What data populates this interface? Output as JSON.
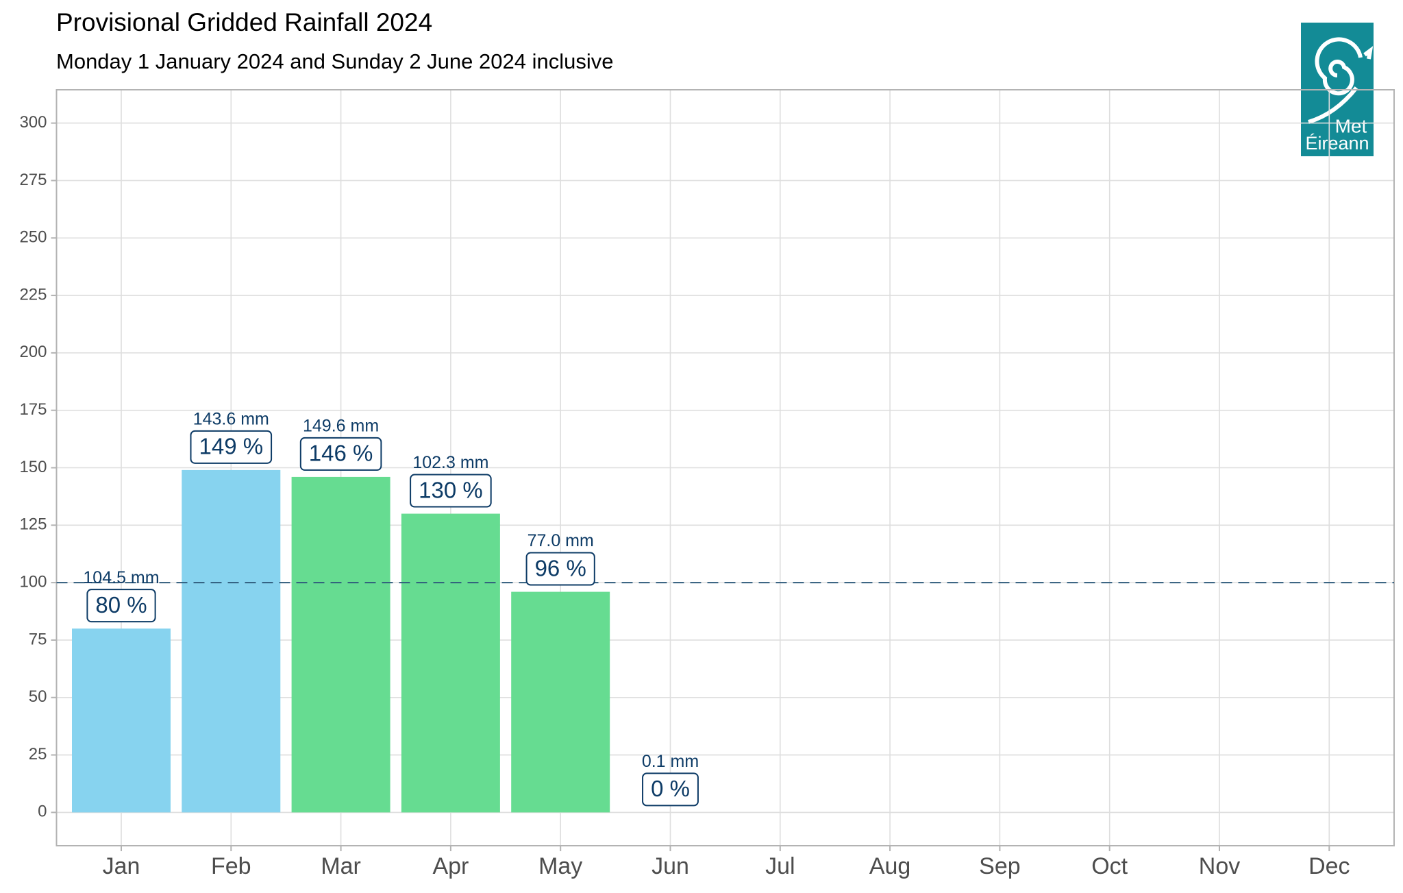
{
  "chart_data": {
    "type": "bar",
    "title": "Provisional Gridded Rainfall 2024",
    "subtitle": "Monday 1 January 2024 and Sunday 2 June 2024 inclusive",
    "categories": [
      "Jan",
      "Feb",
      "Mar",
      "Apr",
      "May",
      "Jun",
      "Jul",
      "Aug",
      "Sep",
      "Oct",
      "Nov",
      "Dec"
    ],
    "values": [
      80,
      149,
      146,
      130,
      96,
      0,
      null,
      null,
      null,
      null,
      null,
      null
    ],
    "value_labels": [
      "80 %",
      "149 %",
      "146 %",
      "130 %",
      "96 %",
      "0 %",
      null,
      null,
      null,
      null,
      null,
      null
    ],
    "rainfall_labels": [
      "104.5 mm",
      "143.6 mm",
      "149.6 mm",
      "102.3 mm",
      "77.0 mm",
      "0.1 mm",
      null,
      null,
      null,
      null,
      null,
      null
    ],
    "colors": [
      "#87d3ef",
      "#87d3ef",
      "#66dc91",
      "#66dc91",
      "#66dc91",
      "#66dc91",
      null,
      null,
      null,
      null,
      null,
      null
    ],
    "reference_line": 100,
    "ylim": [
      -14.5,
      314.5
    ],
    "yticks": [
      0,
      25,
      50,
      75,
      100,
      125,
      150,
      175,
      200,
      225,
      250,
      275,
      300
    ],
    "grid": true,
    "logo": [
      "Met",
      "Éireann"
    ]
  }
}
